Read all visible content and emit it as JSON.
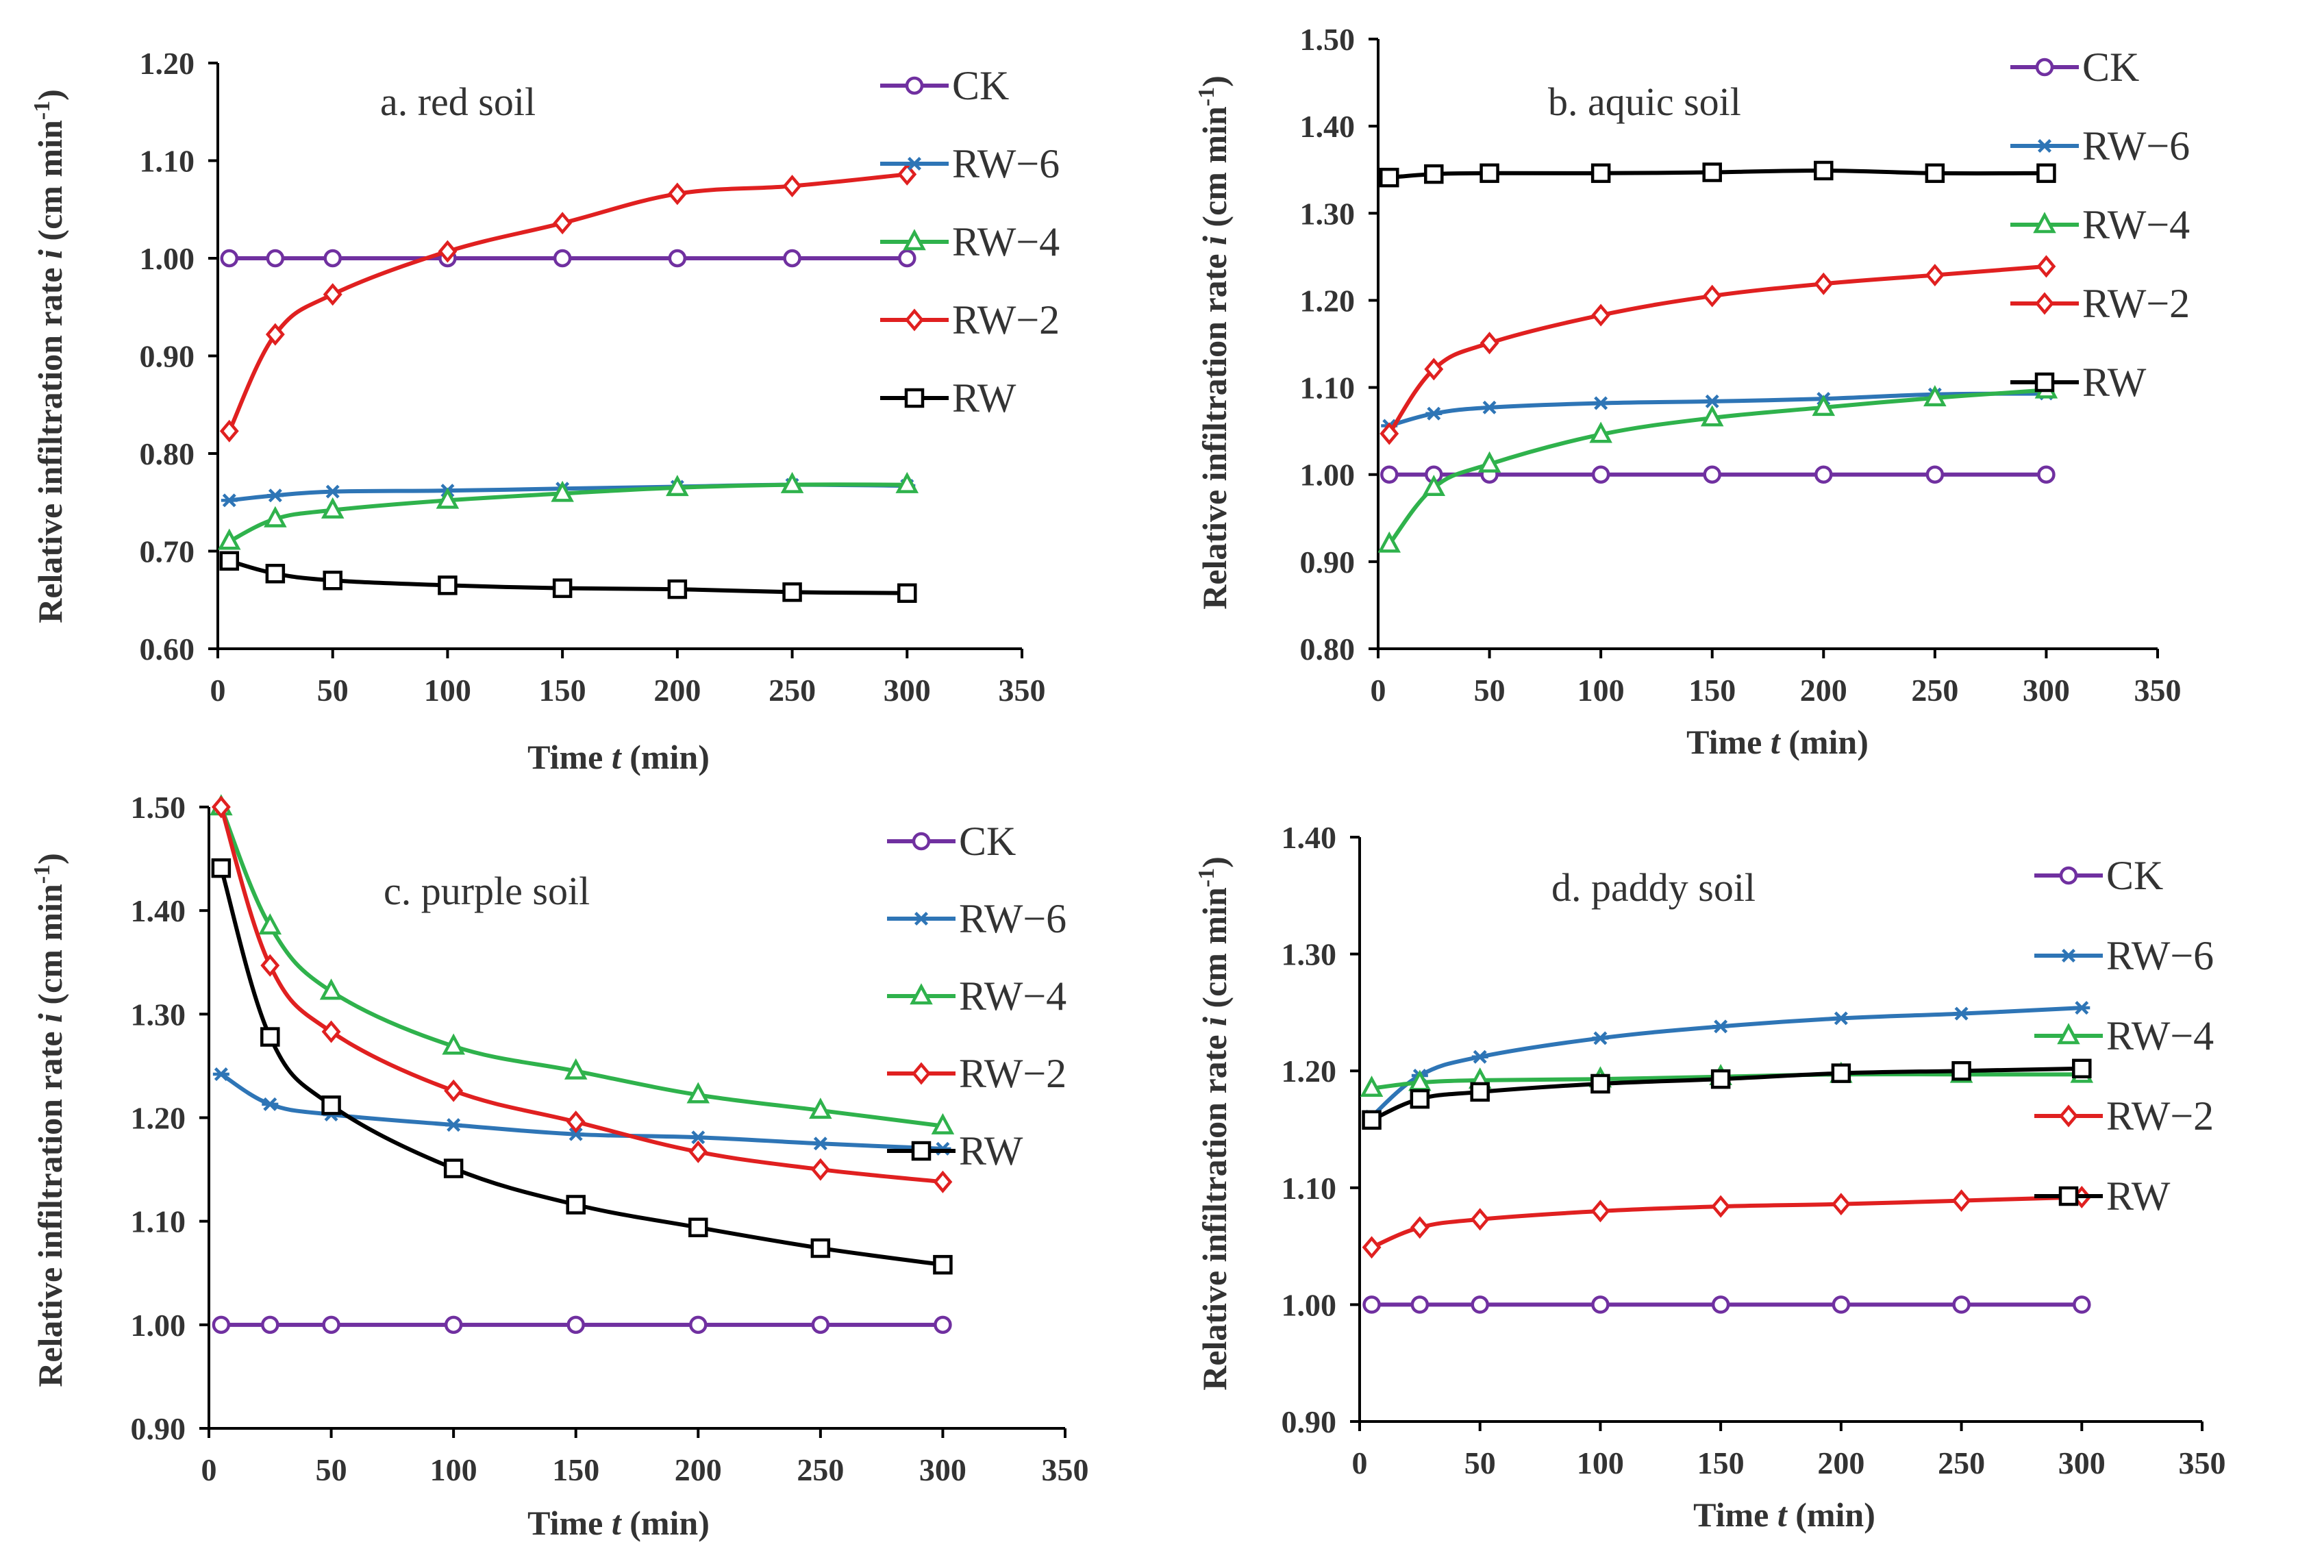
{
  "figure": {
    "series_colors": {
      "CK": "#7030a0",
      "RW-6": "#2e75b6",
      "RW-4": "#2fb24c",
      "RW-2": "#e02020",
      "RW": "#000000"
    },
    "series_markers": {
      "CK": "circle",
      "RW-6": "asterisk",
      "RW-4": "triangle",
      "RW-2": "diamond",
      "RW": "square"
    }
  },
  "chart_data": [
    {
      "type": "line",
      "title": "a. red soil",
      "xlabel": "Time ",
      "xlabel_var": "t",
      "xlabel_unit": " (min)",
      "ylabel": "Relative infiltration rate ",
      "ylabel_var": "i",
      "ylabel_unit": " (cm min",
      "ylabel_sup": "-1",
      "ylabel_close": ")",
      "xlim": [
        0,
        350
      ],
      "ylim": [
        0.6,
        1.2
      ],
      "xticks": [
        "0",
        "50",
        "100",
        "150",
        "200",
        "250",
        "300",
        "350"
      ],
      "yticks": [
        "0.60",
        "0.70",
        "0.80",
        "0.90",
        "1.00",
        "1.10",
        "1.20"
      ],
      "x": [
        5,
        25,
        50,
        100,
        150,
        200,
        250,
        300
      ],
      "legend_labels": [
        "CK",
        "RW−6",
        "RW−4",
        "RW−2",
        "RW"
      ],
      "series": [
        {
          "name": "CK",
          "values": [
            1.0,
            1.0,
            1.0,
            1.0,
            1.0,
            1.0,
            1.0,
            1.0
          ]
        },
        {
          "name": "RW-6",
          "values": [
            0.752,
            0.757,
            0.761,
            0.762,
            0.764,
            0.766,
            0.768,
            0.767
          ]
        },
        {
          "name": "RW-4",
          "values": [
            0.71,
            0.733,
            0.742,
            0.752,
            0.759,
            0.765,
            0.768,
            0.768
          ]
        },
        {
          "name": "RW-2",
          "values": [
            0.823,
            0.922,
            0.963,
            1.007,
            1.036,
            1.066,
            1.074,
            1.086
          ]
        },
        {
          "name": "RW",
          "values": [
            0.69,
            0.677,
            0.67,
            0.665,
            0.662,
            0.661,
            0.658,
            0.657
          ]
        }
      ]
    },
    {
      "type": "line",
      "title": "b. aquic soil",
      "xlabel": "Time ",
      "xlabel_var": "t",
      "xlabel_unit": " (min)",
      "ylabel": "Relative infiltration rate ",
      "ylabel_var": "i",
      "ylabel_unit": " (cm min",
      "ylabel_sup": "-1",
      "ylabel_close": ")",
      "xlim": [
        0,
        350
      ],
      "ylim": [
        0.8,
        1.5
      ],
      "xticks": [
        "0",
        "50",
        "100",
        "150",
        "200",
        "250",
        "300",
        "350"
      ],
      "yticks": [
        "0.80",
        "0.90",
        "1.00",
        "1.10",
        "1.20",
        "1.30",
        "1.40",
        "1.50"
      ],
      "x": [
        5,
        25,
        50,
        100,
        150,
        200,
        250,
        300
      ],
      "legend_labels": [
        "CK",
        "RW−6",
        "RW−4",
        "RW−2",
        "RW"
      ],
      "series": [
        {
          "name": "CK",
          "values": [
            1.0,
            1.0,
            1.0,
            1.0,
            1.0,
            1.0,
            1.0,
            1.0
          ]
        },
        {
          "name": "RW-6",
          "values": [
            1.056,
            1.07,
            1.077,
            1.082,
            1.084,
            1.087,
            1.092,
            1.093
          ]
        },
        {
          "name": "RW-4",
          "values": [
            0.92,
            0.985,
            1.012,
            1.046,
            1.065,
            1.077,
            1.088,
            1.097
          ]
        },
        {
          "name": "RW-2",
          "values": [
            1.047,
            1.121,
            1.151,
            1.183,
            1.205,
            1.219,
            1.229,
            1.239
          ]
        },
        {
          "name": "RW",
          "values": [
            1.341,
            1.345,
            1.346,
            1.346,
            1.347,
            1.349,
            1.346,
            1.346
          ]
        }
      ]
    },
    {
      "type": "line",
      "title": "c. purple soil",
      "xlabel": "Time ",
      "xlabel_var": "t",
      "xlabel_unit": " (min)",
      "ylabel": "Relative infiltration rate ",
      "ylabel_var": "i",
      "ylabel_unit": " (cm min",
      "ylabel_sup": "-1",
      "ylabel_close": ")",
      "xlim": [
        0,
        350
      ],
      "ylim": [
        0.9,
        1.5
      ],
      "xticks": [
        "0",
        "50",
        "100",
        "150",
        "200",
        "250",
        "300",
        "350"
      ],
      "yticks": [
        "0.90",
        "1.00",
        "1.10",
        "1.20",
        "1.30",
        "1.40",
        "1.50"
      ],
      "x": [
        5,
        25,
        50,
        100,
        150,
        200,
        250,
        300
      ],
      "legend_labels": [
        "CK",
        "RW−6",
        "RW−4",
        "RW−2",
        "RW"
      ],
      "series": [
        {
          "name": "CK",
          "values": [
            1.0,
            1.0,
            1.0,
            1.0,
            1.0,
            1.0,
            1.0,
            1.0
          ]
        },
        {
          "name": "RW-6",
          "values": [
            1.242,
            1.213,
            1.203,
            1.193,
            1.184,
            1.181,
            1.175,
            1.17
          ]
        },
        {
          "name": "RW-4",
          "values": [
            1.5,
            1.385,
            1.322,
            1.269,
            1.245,
            1.222,
            1.207,
            1.192
          ]
        },
        {
          "name": "RW-2",
          "values": [
            1.5,
            1.347,
            1.283,
            1.226,
            1.196,
            1.167,
            1.15,
            1.138
          ]
        },
        {
          "name": "RW",
          "values": [
            1.441,
            1.278,
            1.212,
            1.151,
            1.116,
            1.094,
            1.074,
            1.058
          ]
        }
      ]
    },
    {
      "type": "line",
      "title": "d. paddy soil",
      "xlabel": "Time ",
      "xlabel_var": "t",
      "xlabel_unit": " (min)",
      "ylabel": "Relative infiltration rate ",
      "ylabel_var": "i",
      "ylabel_unit": " (cm min",
      "ylabel_sup": "-1",
      "ylabel_close": ")",
      "xlim": [
        0,
        350
      ],
      "ylim": [
        0.9,
        1.4
      ],
      "xticks": [
        "0",
        "50",
        "100",
        "150",
        "200",
        "250",
        "300",
        "350"
      ],
      "yticks": [
        "0.90",
        "1.00",
        "1.10",
        "1.20",
        "1.30",
        "1.40"
      ],
      "x": [
        5,
        25,
        50,
        100,
        150,
        200,
        250,
        300
      ],
      "legend_labels": [
        "CK",
        "RW−6",
        "RW−4",
        "RW−2",
        "RW"
      ],
      "series": [
        {
          "name": "CK",
          "values": [
            1.0,
            1.0,
            1.0,
            1.0,
            1.0,
            1.0,
            1.0,
            1.0
          ]
        },
        {
          "name": "RW-6",
          "values": [
            1.161,
            1.196,
            1.212,
            1.228,
            1.238,
            1.245,
            1.249,
            1.254
          ]
        },
        {
          "name": "RW-4",
          "values": [
            1.185,
            1.19,
            1.192,
            1.193,
            1.195,
            1.197,
            1.197,
            1.197
          ]
        },
        {
          "name": "RW-2",
          "values": [
            1.049,
            1.066,
            1.073,
            1.08,
            1.084,
            1.086,
            1.089,
            1.092
          ]
        },
        {
          "name": "RW",
          "values": [
            1.158,
            1.176,
            1.182,
            1.189,
            1.193,
            1.198,
            1.2,
            1.202
          ]
        }
      ]
    }
  ]
}
